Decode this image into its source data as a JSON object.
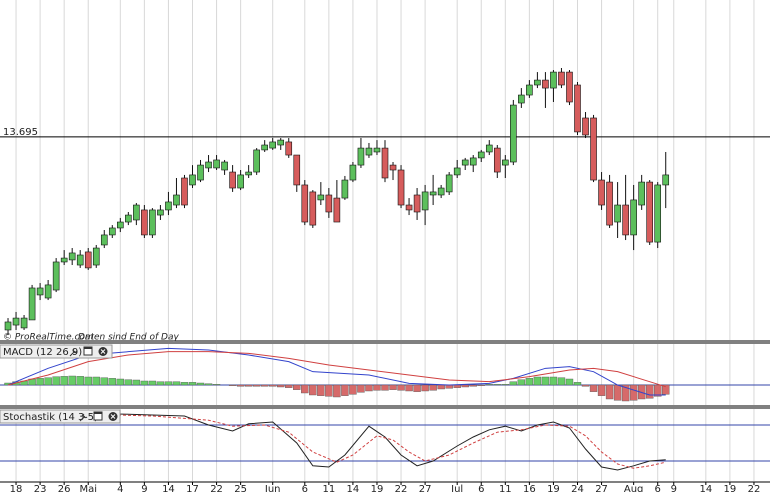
{
  "chart_data": [
    {
      "type": "candlestick",
      "level": 13.695,
      "source": "© ProRealTime.com",
      "note": "Daten sind End of Day",
      "up_color": "#5cbf5c",
      "down_color": "#d65c5c",
      "xlim": [
        -1,
        95
      ],
      "ylim": [
        12.5,
        14.5
      ],
      "xticks": [
        {
          "value": 1,
          "label": "18"
        },
        {
          "value": 4,
          "label": "23"
        },
        {
          "value": 7,
          "label": "26"
        },
        {
          "value": 10,
          "label": "Mai"
        },
        {
          "value": 14,
          "label": "4"
        },
        {
          "value": 17,
          "label": "9"
        },
        {
          "value": 20,
          "label": "14"
        },
        {
          "value": 23,
          "label": "17"
        },
        {
          "value": 26,
          "label": "22"
        },
        {
          "value": 29,
          "label": "25"
        },
        {
          "value": 33,
          "label": "Jun"
        },
        {
          "value": 37,
          "label": "6"
        },
        {
          "value": 40,
          "label": "11"
        },
        {
          "value": 43,
          "label": "14"
        },
        {
          "value": 46,
          "label": "19"
        },
        {
          "value": 49,
          "label": "22"
        },
        {
          "value": 52,
          "label": "27"
        },
        {
          "value": 56,
          "label": "Jul"
        },
        {
          "value": 59,
          "label": "6"
        },
        {
          "value": 62,
          "label": "11"
        },
        {
          "value": 65,
          "label": "16"
        },
        {
          "value": 68,
          "label": "19"
        },
        {
          "value": 71,
          "label": "24"
        },
        {
          "value": 74,
          "label": "27"
        },
        {
          "value": 78,
          "label": "Aug"
        },
        {
          "value": 81,
          "label": "6"
        },
        {
          "value": 83,
          "label": "9"
        },
        {
          "value": 87,
          "label": "14"
        },
        {
          "value": 90,
          "label": "19"
        },
        {
          "value": 93,
          "label": "22"
        }
      ],
      "grid": true,
      "x": [
        0,
        1,
        2,
        3,
        4,
        5,
        6,
        7,
        8,
        9,
        10,
        11,
        12,
        13,
        14,
        15,
        16,
        17,
        18,
        19,
        20,
        21,
        22,
        23,
        24,
        25,
        26,
        27,
        28,
        29,
        30,
        31,
        32,
        33,
        34,
        35,
        36,
        37,
        38,
        39,
        40,
        41,
        42,
        43,
        44,
        45,
        46,
        47,
        48,
        49,
        50,
        51,
        52,
        53,
        54,
        55,
        56,
        57,
        58,
        59,
        60,
        61,
        62,
        63,
        64,
        65,
        66,
        67,
        68,
        69,
        70,
        71,
        72,
        73,
        74,
        75,
        76,
        77,
        78,
        79,
        80,
        81,
        82
      ],
      "open": [
        12.559,
        12.588,
        12.571,
        12.618,
        12.765,
        12.747,
        12.794,
        12.959,
        12.971,
        12.941,
        13.018,
        12.941,
        13.059,
        13.118,
        13.159,
        13.194,
        13.206,
        13.265,
        13.118,
        13.235,
        13.265,
        13.294,
        13.453,
        13.412,
        13.441,
        13.512,
        13.512,
        13.5,
        13.488,
        13.394,
        13.471,
        13.488,
        13.618,
        13.629,
        13.647,
        13.665,
        13.588,
        13.412,
        13.371,
        13.324,
        13.353,
        13.335,
        13.335,
        13.441,
        13.529,
        13.588,
        13.606,
        13.629,
        13.529,
        13.5,
        13.294,
        13.353,
        13.265,
        13.353,
        13.353,
        13.371,
        13.471,
        13.529,
        13.529,
        13.571,
        13.606,
        13.629,
        13.529,
        13.547,
        13.894,
        13.941,
        14.0,
        14.029,
        13.982,
        14.076,
        14.076,
        14.0,
        13.806,
        13.806,
        13.441,
        13.429,
        13.194,
        13.294,
        13.118,
        13.294,
        13.429,
        13.076,
        13.412
      ],
      "high": [
        12.629,
        12.665,
        12.647,
        12.824,
        12.835,
        12.853,
        12.982,
        13.029,
        13.041,
        13.029,
        13.041,
        13.059,
        13.147,
        13.176,
        13.218,
        13.253,
        13.306,
        13.294,
        13.276,
        13.294,
        13.371,
        13.453,
        13.471,
        13.529,
        13.559,
        13.588,
        13.588,
        13.559,
        13.529,
        13.5,
        13.529,
        13.629,
        13.676,
        13.688,
        13.688,
        13.688,
        13.588,
        13.441,
        13.382,
        13.429,
        13.394,
        13.441,
        13.465,
        13.547,
        13.688,
        13.659,
        13.676,
        13.676,
        13.547,
        13.529,
        13.335,
        13.394,
        13.412,
        13.471,
        13.412,
        13.488,
        13.559,
        13.571,
        13.588,
        13.618,
        13.676,
        13.647,
        13.588,
        13.912,
        13.982,
        14.029,
        14.076,
        14.076,
        14.088,
        14.1,
        14.088,
        14.018,
        13.841,
        13.824,
        13.488,
        13.471,
        13.429,
        13.471,
        13.412,
        13.471,
        13.441,
        13.429,
        13.606
      ],
      "low": [
        12.529,
        12.559,
        12.559,
        12.618,
        12.735,
        12.735,
        12.782,
        12.941,
        12.941,
        12.924,
        12.912,
        12.924,
        13.041,
        13.1,
        13.135,
        13.176,
        13.176,
        13.1,
        13.1,
        13.206,
        13.235,
        13.276,
        13.276,
        13.394,
        13.429,
        13.488,
        13.5,
        13.471,
        13.371,
        13.382,
        13.453,
        13.471,
        13.606,
        13.618,
        13.618,
        13.571,
        13.371,
        13.176,
        13.159,
        13.294,
        13.218,
        13.194,
        13.324,
        13.429,
        13.512,
        13.571,
        13.588,
        13.429,
        13.441,
        13.276,
        13.235,
        13.206,
        13.176,
        13.294,
        13.335,
        13.353,
        13.453,
        13.5,
        13.488,
        13.547,
        13.588,
        13.453,
        13.453,
        13.529,
        13.865,
        13.924,
        13.982,
        13.865,
        13.9,
        13.982,
        13.882,
        13.706,
        13.688,
        13.429,
        13.265,
        13.159,
        13.1,
        13.088,
        13.029,
        13.265,
        13.059,
        13.041,
        13.276
      ],
      "close": [
        12.606,
        12.629,
        12.629,
        12.806,
        12.806,
        12.824,
        12.959,
        12.982,
        13.012,
        13.0,
        12.924,
        13.041,
        13.118,
        13.159,
        13.194,
        13.235,
        13.294,
        13.118,
        13.265,
        13.265,
        13.312,
        13.353,
        13.294,
        13.471,
        13.529,
        13.547,
        13.559,
        13.547,
        13.394,
        13.471,
        13.488,
        13.618,
        13.647,
        13.665,
        13.676,
        13.588,
        13.412,
        13.194,
        13.176,
        13.353,
        13.253,
        13.194,
        13.441,
        13.529,
        13.629,
        13.629,
        13.629,
        13.453,
        13.5,
        13.294,
        13.265,
        13.253,
        13.371,
        13.371,
        13.394,
        13.471,
        13.512,
        13.559,
        13.571,
        13.606,
        13.647,
        13.488,
        13.559,
        13.882,
        13.941,
        14.0,
        14.029,
        13.982,
        14.076,
        14.0,
        13.9,
        13.724,
        13.706,
        13.441,
        13.294,
        13.176,
        13.294,
        13.118,
        13.324,
        13.429,
        13.076,
        13.412,
        13.471
      ]
    },
    {
      "type": "macd",
      "title": "MACD (12 26 9)",
      "ylim": [
        -0.06,
        0.12
      ],
      "zero": 0,
      "histogram": {
        "up_color": "#66cc66",
        "down_color": "#d66a6a",
        "values": [
          0.006,
          0.01,
          0.012,
          0.018,
          0.02,
          0.022,
          0.025,
          0.026,
          0.027,
          0.026,
          0.024,
          0.024,
          0.022,
          0.02,
          0.018,
          0.016,
          0.015,
          0.012,
          0.012,
          0.01,
          0.01,
          0.01,
          0.008,
          0.008,
          0.006,
          0.004,
          0.002,
          0.0,
          -0.002,
          -0.004,
          -0.004,
          -0.004,
          -0.004,
          -0.004,
          -0.006,
          -0.008,
          -0.014,
          -0.024,
          -0.03,
          -0.032,
          -0.034,
          -0.036,
          -0.032,
          -0.028,
          -0.022,
          -0.018,
          -0.016,
          -0.016,
          -0.014,
          -0.016,
          -0.018,
          -0.02,
          -0.018,
          -0.016,
          -0.012,
          -0.01,
          -0.008,
          -0.006,
          -0.004,
          -0.002,
          0.002,
          0.002,
          0.002,
          0.01,
          0.016,
          0.02,
          0.024,
          0.024,
          0.024,
          0.022,
          0.018,
          0.008,
          -0.004,
          -0.02,
          -0.032,
          -0.042,
          -0.046,
          -0.048,
          -0.046,
          -0.042,
          -0.04,
          -0.034,
          -0.028
        ]
      },
      "series": [
        {
          "color": "#3344cc",
          "x": [
            0,
            5,
            10,
            15,
            20,
            25,
            30,
            35,
            38,
            45,
            50,
            55,
            60,
            63,
            67,
            70,
            73,
            76,
            80,
            82
          ],
          "values": [
            0.0,
            0.05,
            0.09,
            0.1,
            0.11,
            0.105,
            0.09,
            0.07,
            0.04,
            0.03,
            0.005,
            0.0,
            0.005,
            0.02,
            0.05,
            0.055,
            0.04,
            0.0,
            -0.03,
            -0.03
          ]
        },
        {
          "color": "#d04040",
          "x": [
            0,
            5,
            10,
            15,
            20,
            25,
            30,
            35,
            40,
            45,
            50,
            55,
            60,
            65,
            70,
            73,
            76,
            80,
            82
          ],
          "values": [
            0.0,
            0.03,
            0.07,
            0.09,
            0.1,
            0.1,
            0.095,
            0.08,
            0.06,
            0.045,
            0.03,
            0.015,
            0.01,
            0.025,
            0.045,
            0.05,
            0.04,
            0.01,
            -0.005
          ]
        }
      ]
    },
    {
      "type": "stochastic",
      "title": "Stochastik (14 3 5)",
      "ylim": [
        0,
        100
      ],
      "levels": [
        20,
        80
      ],
      "level_color": "#3344aa",
      "series": [
        {
          "color": "#222222",
          "x": [
            0,
            8,
            15,
            22,
            25,
            28,
            30,
            33,
            36,
            38,
            40,
            42,
            45,
            47,
            49,
            51,
            53,
            56,
            58,
            60,
            62,
            64,
            66,
            68,
            70,
            72,
            74,
            76,
            78,
            80,
            82
          ],
          "values": [
            100,
            100,
            98,
            95,
            80,
            70,
            82,
            85,
            50,
            12,
            10,
            30,
            78,
            60,
            30,
            12,
            20,
            45,
            60,
            72,
            78,
            70,
            80,
            85,
            75,
            40,
            10,
            5,
            12,
            20,
            22
          ]
        },
        {
          "color": "#d04040",
          "dashed": true,
          "x": [
            0,
            10,
            18,
            25,
            28,
            32,
            35,
            38,
            41,
            43,
            46,
            48,
            50,
            52,
            55,
            58,
            61,
            64,
            67,
            70,
            72,
            74,
            76,
            78,
            80,
            82
          ],
          "values": [
            100,
            98,
            95,
            88,
            78,
            80,
            68,
            35,
            18,
            30,
            62,
            55,
            35,
            20,
            30,
            50,
            68,
            72,
            80,
            78,
            62,
            35,
            15,
            8,
            12,
            18
          ]
        }
      ]
    }
  ]
}
